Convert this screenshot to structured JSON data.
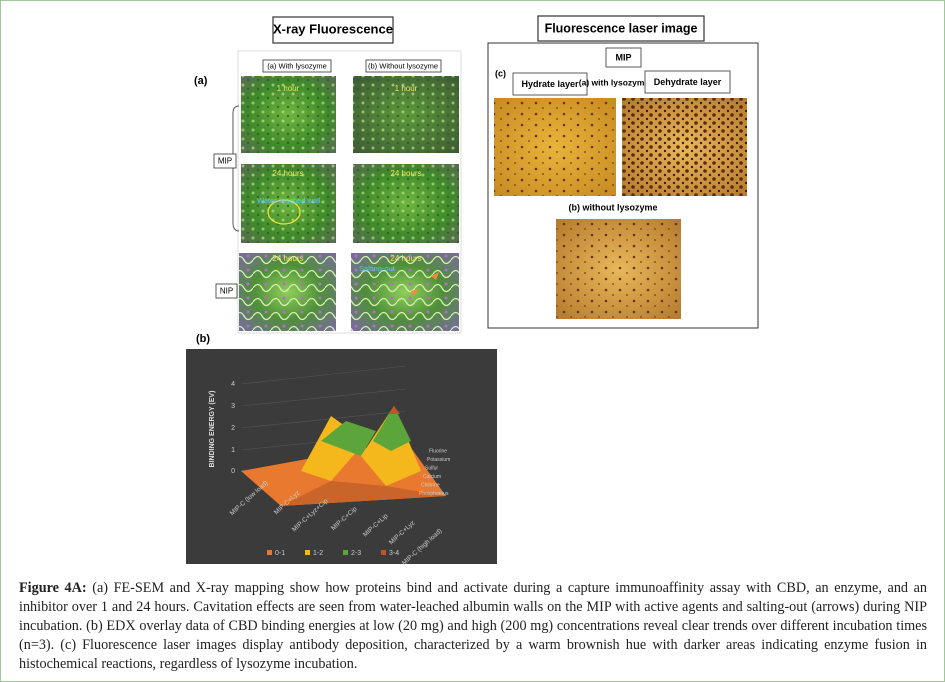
{
  "xray": {
    "title": "X-ray Fluorescence",
    "panel_label": "(a)",
    "col_a": "(a) With lysozyme",
    "col_b": "(b) Without lysozyme",
    "mip": "MIP",
    "nip": "NIP",
    "img_1h_a": "1 hour",
    "img_1h_b": "1 hour",
    "img_24h_a": "24 hours",
    "img_24h_b": "24 hours",
    "img_nip_a": "24 hours",
    "img_nip_b": "24 hours",
    "water_note": "Water-leached wall",
    "salting_note": "Salting-out"
  },
  "laser": {
    "title": "Fluorescence laser image",
    "mip": "MIP",
    "panel_label": "(c)",
    "hydrate": "Hydrate layer",
    "with_lyz": "(a) with lysozyme",
    "dehydrate": "Dehydrate layer",
    "without_lyz": "(b) without lysozyme"
  },
  "edx": {
    "panel_label": "(b)",
    "y_label": "BINDING ENERGY (EV)",
    "yticks": [
      4,
      3,
      2,
      1,
      0
    ],
    "categories": [
      "MIP-C (low load)",
      "MIP-C+Lyz",
      "MIP-C+Lyz+Cip",
      "MIP-C+Cip",
      "MIP-C+Lip",
      "MIP-C+Lyz",
      "MIP-C (high load)"
    ],
    "elements": [
      "Fluorine",
      "Potassium",
      "Sulfur",
      "Calcium",
      "Chlorine",
      "Phosphorous"
    ],
    "legend": [
      "0-1",
      "1-2",
      "2-3",
      "3-4"
    ]
  },
  "caption": {
    "label": "Figure 4A:",
    "text": "(a) FE-SEM and X-ray mapping show how proteins bind and activate during a capture immunoaffinity assay with CBD, an enzyme, and an inhibitor over 1 and 24 hours. Cavitation effects are seen from water-leached albumin walls on the MIP with active agents and salting-out (arrows) during NIP incubation. (b) EDX overlay data of CBD binding energies at low (20 mg) and high (200 mg) concentrations reveal clear trends over different incubation times (n=3). (c) Fluorescence laser images display antibody deposition, characterized by a warm brownish hue with darker areas indicating enzyme fusion in histochemical reactions, regardless of lysozyme incubation."
  }
}
